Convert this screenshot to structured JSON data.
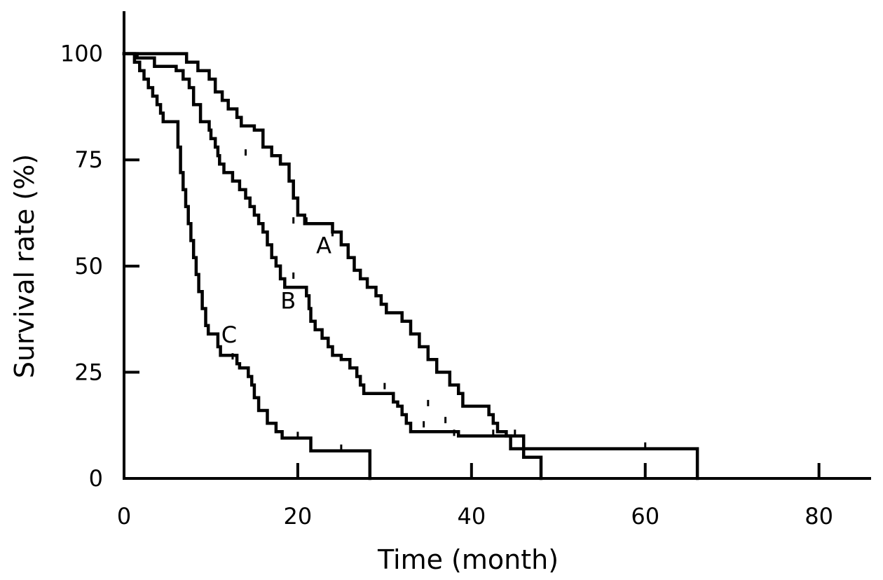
{
  "chart_data": {
    "type": "line",
    "title": "",
    "xlabel": "Time (month)",
    "ylabel": "Survival rate (%)",
    "xlim": [
      0,
      86
    ],
    "ylim": [
      0,
      110
    ],
    "xticks": [
      0,
      20,
      40,
      60,
      80
    ],
    "yticks": [
      0,
      25,
      50,
      75,
      100
    ],
    "grid": false,
    "line_color": "#000000",
    "series": [
      {
        "name": "A",
        "steps": [
          [
            0,
            100
          ],
          [
            6.5,
            100
          ],
          [
            7.2,
            98
          ],
          [
            8.5,
            96
          ],
          [
            9.8,
            94
          ],
          [
            10.5,
            91
          ],
          [
            11.3,
            89
          ],
          [
            12,
            87
          ],
          [
            13,
            85
          ],
          [
            13.5,
            83
          ],
          [
            15,
            82
          ],
          [
            16,
            78
          ],
          [
            17,
            76
          ],
          [
            18,
            74
          ],
          [
            19,
            70
          ],
          [
            19.5,
            66
          ],
          [
            20,
            62
          ],
          [
            20.8,
            60
          ],
          [
            23,
            60
          ],
          [
            24,
            58
          ],
          [
            25,
            55
          ],
          [
            25.8,
            52
          ],
          [
            26.5,
            49
          ],
          [
            27.2,
            47
          ],
          [
            28,
            45
          ],
          [
            29,
            43
          ],
          [
            29.6,
            41
          ],
          [
            30.2,
            39
          ],
          [
            32,
            37
          ],
          [
            33,
            34
          ],
          [
            34,
            31
          ],
          [
            35,
            28
          ],
          [
            36,
            25
          ],
          [
            37.5,
            22
          ],
          [
            38.5,
            20
          ],
          [
            39,
            17
          ],
          [
            41,
            17
          ],
          [
            42,
            15
          ],
          [
            42.5,
            13
          ],
          [
            43,
            11
          ],
          [
            44,
            10
          ],
          [
            45.5,
            10
          ],
          [
            46,
            7
          ],
          [
            66,
            0
          ]
        ],
        "censors": [
          [
            19.5,
            60
          ],
          [
            21,
            60
          ],
          [
            24,
            57
          ],
          [
            35,
            17
          ],
          [
            37,
            13
          ],
          [
            42.5,
            10
          ],
          [
            45,
            10
          ],
          [
            60,
            7
          ]
        ],
        "label_at": [
          23,
          53
        ]
      },
      {
        "name": "B",
        "steps": [
          [
            0,
            100
          ],
          [
            1.5,
            99
          ],
          [
            3.5,
            97
          ],
          [
            6,
            96
          ],
          [
            6.8,
            94
          ],
          [
            7.5,
            92
          ],
          [
            8,
            88
          ],
          [
            8.8,
            84
          ],
          [
            9.8,
            82
          ],
          [
            10,
            80
          ],
          [
            10.5,
            78
          ],
          [
            10.8,
            76
          ],
          [
            11,
            74
          ],
          [
            11.5,
            72
          ],
          [
            12.5,
            70
          ],
          [
            13.3,
            68
          ],
          [
            14,
            66
          ],
          [
            14.5,
            64
          ],
          [
            15,
            62
          ],
          [
            15.5,
            60
          ],
          [
            16,
            58
          ],
          [
            16.5,
            55
          ],
          [
            17,
            52
          ],
          [
            17.5,
            50
          ],
          [
            18,
            47
          ],
          [
            18.5,
            45
          ],
          [
            20.5,
            45
          ],
          [
            21,
            43
          ],
          [
            21.3,
            40
          ],
          [
            21.5,
            37
          ],
          [
            22,
            35
          ],
          [
            22.8,
            33
          ],
          [
            23.5,
            31
          ],
          [
            24,
            29
          ],
          [
            25,
            28
          ],
          [
            26,
            26
          ],
          [
            26.8,
            24
          ],
          [
            27.2,
            22
          ],
          [
            27.6,
            20
          ],
          [
            30.5,
            20
          ],
          [
            31,
            18
          ],
          [
            31.5,
            17
          ],
          [
            32,
            15
          ],
          [
            32.5,
            13
          ],
          [
            33,
            11
          ],
          [
            38,
            11
          ],
          [
            38.5,
            10
          ],
          [
            44,
            10
          ],
          [
            44.5,
            7
          ],
          [
            45.5,
            7
          ],
          [
            46,
            5
          ],
          [
            47.5,
            5
          ],
          [
            48,
            0
          ]
        ],
        "censors": [
          [
            14,
            76
          ],
          [
            18,
            47
          ],
          [
            19.5,
            47
          ],
          [
            30,
            21
          ],
          [
            34.5,
            12
          ],
          [
            38,
            10
          ]
        ],
        "label_at": [
          18.9,
          40
        ]
      },
      {
        "name": "C",
        "steps": [
          [
            0,
            100
          ],
          [
            1.2,
            98
          ],
          [
            1.8,
            96
          ],
          [
            2.3,
            94
          ],
          [
            2.8,
            92
          ],
          [
            3.3,
            90
          ],
          [
            3.8,
            88
          ],
          [
            4.2,
            86
          ],
          [
            4.5,
            84
          ],
          [
            5.8,
            84
          ],
          [
            6.2,
            78
          ],
          [
            6.5,
            72
          ],
          [
            6.8,
            68
          ],
          [
            7.1,
            64
          ],
          [
            7.4,
            60
          ],
          [
            7.7,
            56
          ],
          [
            8,
            52
          ],
          [
            8.3,
            48
          ],
          [
            8.6,
            44
          ],
          [
            9,
            40
          ],
          [
            9.4,
            36
          ],
          [
            9.7,
            34
          ],
          [
            10.5,
            34
          ],
          [
            10.8,
            31
          ],
          [
            11.1,
            29
          ],
          [
            12.8,
            29
          ],
          [
            13,
            27
          ],
          [
            13.3,
            26
          ],
          [
            14,
            26
          ],
          [
            14.3,
            24
          ],
          [
            14.7,
            22
          ],
          [
            15,
            19
          ],
          [
            15.5,
            16
          ],
          [
            16.5,
            13
          ],
          [
            17.5,
            11
          ],
          [
            18.2,
            9.5
          ],
          [
            21,
            9.5
          ],
          [
            21.5,
            6.5
          ],
          [
            28,
            6.5
          ],
          [
            28.3,
            0
          ]
        ],
        "censors": [
          [
            12.5,
            28
          ],
          [
            20,
            9.5
          ],
          [
            25,
            6.5
          ]
        ],
        "label_at": [
          12.1,
          32
        ]
      }
    ]
  }
}
